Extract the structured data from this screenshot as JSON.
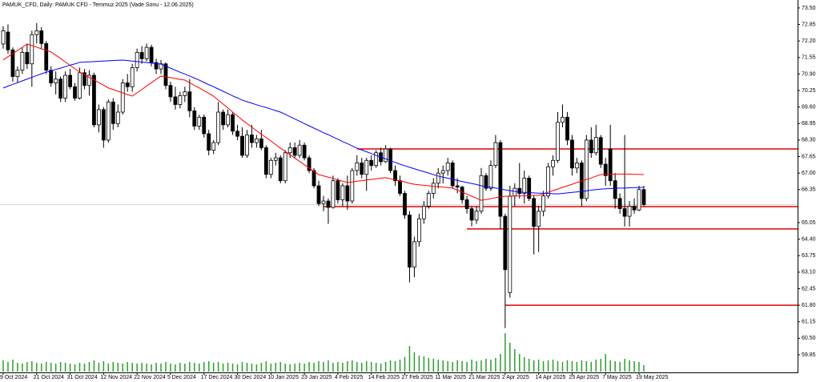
{
  "chart_data": {
    "type": "candlestick",
    "title": "PAMUK_CFD, Daily:  PAMUK CFD - Temmuz 2025 (Vade Sonu - 12.06.2025)",
    "categories": [
      "9 Oct 2024",
      null,
      null,
      null,
      null,
      null,
      null,
      "21 Oct 2024",
      null,
      null,
      null,
      null,
      null,
      null,
      "31 Oct 2024",
      null,
      null,
      null,
      null,
      null,
      null,
      "12 Nov 2024",
      null,
      null,
      null,
      null,
      null,
      null,
      "22 Nov 2024",
      null,
      null,
      null,
      null,
      null,
      null,
      "5 Dec 2024",
      null,
      null,
      null,
      null,
      null,
      null,
      "17 Dec 2024",
      null,
      null,
      null,
      null,
      null,
      null,
      "30 Dec 2024",
      null,
      null,
      null,
      null,
      null,
      null,
      "10 Jan 2025",
      null,
      null,
      null,
      null,
      null,
      null,
      "23 Jan 2025",
      null,
      null,
      null,
      null,
      null,
      null,
      "4 Feb 2025",
      null,
      null,
      null,
      null,
      null,
      null,
      "14 Feb 2025",
      null,
      null,
      null,
      null,
      null,
      null,
      "27 Feb 2025",
      null,
      null,
      null,
      null,
      null,
      null,
      "11 Mar 2025",
      null,
      null,
      null,
      null,
      null,
      null,
      "21 Mar 2025",
      null,
      null,
      null,
      null,
      null,
      null,
      "2 Apr 2025",
      null,
      null,
      null,
      null,
      null,
      null,
      "14 Apr 2025",
      null,
      null,
      null,
      null,
      null,
      null,
      "25 Apr 2025",
      null,
      null,
      null,
      null,
      null,
      null,
      "7 May 2025",
      null,
      null,
      null,
      null,
      null,
      null,
      "19 May 2025",
      null
    ],
    "ohlc": [
      [
        72.08,
        72.78,
        71.9,
        72.6
      ],
      [
        72.55,
        72.85,
        71.7,
        71.85
      ],
      [
        71.85,
        71.95,
        70.6,
        70.8
      ],
      [
        70.8,
        71.2,
        70.55,
        71.05
      ],
      [
        71.05,
        71.95,
        70.9,
        71.75
      ],
      [
        71.75,
        72.1,
        71.1,
        71.3
      ],
      [
        71.3,
        72.6,
        70.4,
        72.45
      ],
      [
        72.45,
        72.9,
        72.1,
        72.6
      ],
      [
        72.6,
        72.75,
        71.9,
        72.1
      ],
      [
        72.1,
        72.2,
        70.9,
        71.05
      ],
      [
        71.05,
        71.2,
        70.4,
        70.55
      ],
      [
        70.55,
        71.0,
        70.1,
        70.7
      ],
      [
        70.7,
        70.8,
        69.8,
        69.95
      ],
      [
        69.95,
        71.0,
        69.8,
        70.85
      ],
      [
        70.85,
        71.1,
        70.3,
        70.4
      ],
      [
        70.4,
        70.55,
        69.85,
        69.95
      ],
      [
        69.95,
        71.15,
        69.9,
        70.95
      ],
      [
        70.95,
        71.1,
        70.3,
        70.45
      ],
      [
        70.45,
        71.05,
        70.05,
        70.85
      ],
      [
        70.85,
        70.95,
        68.8,
        68.9
      ],
      [
        68.9,
        69.7,
        68.6,
        69.5
      ],
      [
        69.5,
        69.6,
        68.0,
        68.3
      ],
      [
        68.3,
        69.9,
        68.2,
        69.8
      ],
      [
        69.8,
        69.95,
        68.7,
        68.95
      ],
      [
        68.95,
        69.7,
        68.8,
        69.4
      ],
      [
        69.4,
        70.7,
        69.3,
        70.55
      ],
      [
        70.55,
        70.9,
        70.2,
        70.4
      ],
      [
        70.4,
        71.3,
        70.2,
        71.15
      ],
      [
        71.15,
        71.9,
        71.0,
        71.75
      ],
      [
        71.75,
        72.0,
        71.3,
        71.5
      ],
      [
        71.5,
        72.1,
        71.4,
        71.95
      ],
      [
        71.95,
        72.05,
        71.2,
        71.35
      ],
      [
        71.35,
        71.5,
        70.9,
        71.1
      ],
      [
        71.1,
        71.45,
        70.9,
        71.3
      ],
      [
        71.3,
        71.35,
        70.3,
        70.45
      ],
      [
        70.45,
        70.6,
        69.8,
        70.0
      ],
      [
        70.0,
        70.4,
        69.5,
        69.7
      ],
      [
        69.7,
        70.2,
        69.55,
        70.05
      ],
      [
        70.05,
        70.4,
        69.8,
        70.2
      ],
      [
        70.2,
        70.7,
        69.2,
        69.45
      ],
      [
        69.45,
        69.6,
        68.7,
        68.85
      ],
      [
        68.85,
        69.3,
        68.7,
        69.2
      ],
      [
        69.2,
        69.3,
        68.4,
        68.55
      ],
      [
        68.55,
        68.7,
        67.7,
        67.9
      ],
      [
        67.9,
        68.3,
        67.75,
        68.2
      ],
      [
        68.2,
        69.8,
        68.1,
        69.4
      ],
      [
        69.4,
        69.5,
        68.7,
        68.9
      ],
      [
        68.9,
        69.5,
        68.8,
        69.3
      ],
      [
        69.3,
        69.4,
        68.5,
        68.65
      ],
      [
        68.65,
        68.9,
        68.3,
        68.45
      ],
      [
        68.45,
        68.8,
        67.6,
        67.7
      ],
      [
        67.7,
        68.7,
        67.6,
        68.5
      ],
      [
        68.5,
        68.9,
        68.0,
        68.2
      ],
      [
        68.2,
        68.5,
        68.0,
        68.35
      ],
      [
        68.35,
        68.7,
        67.9,
        68.0
      ],
      [
        68.0,
        68.1,
        66.8,
        66.95
      ],
      [
        66.95,
        67.6,
        66.8,
        67.5
      ],
      [
        67.5,
        67.8,
        67.3,
        67.6
      ],
      [
        67.6,
        67.7,
        66.6,
        66.7
      ],
      [
        66.7,
        67.9,
        66.6,
        67.8
      ],
      [
        67.8,
        68.2,
        67.6,
        68.0
      ],
      [
        68.0,
        68.2,
        67.6,
        67.7
      ],
      [
        67.7,
        68.3,
        67.6,
        68.1
      ],
      [
        68.1,
        68.2,
        67.5,
        67.6
      ],
      [
        67.6,
        67.7,
        67.0,
        67.1
      ],
      [
        67.1,
        67.2,
        66.4,
        66.5
      ],
      [
        66.5,
        66.7,
        65.7,
        65.8
      ],
      [
        65.8,
        66.1,
        65.5,
        65.9
      ],
      [
        65.9,
        66.0,
        65.0,
        65.65
      ],
      [
        65.65,
        66.9,
        65.6,
        66.7
      ],
      [
        66.7,
        66.8,
        65.8,
        65.95
      ],
      [
        65.95,
        66.6,
        65.7,
        66.5
      ],
      [
        66.5,
        66.9,
        65.55,
        65.9
      ],
      [
        65.9,
        67.2,
        65.8,
        67.1
      ],
      [
        67.1,
        67.7,
        66.9,
        67.4
      ],
      [
        67.4,
        67.6,
        66.8,
        66.95
      ],
      [
        66.95,
        67.6,
        66.3,
        67.5
      ],
      [
        67.5,
        67.7,
        67.1,
        67.3
      ],
      [
        67.3,
        67.9,
        67.2,
        67.8
      ],
      [
        67.8,
        68.0,
        67.3,
        67.45
      ],
      [
        67.45,
        68.1,
        67.4,
        67.95
      ],
      [
        67.95,
        68.0,
        67.0,
        67.1
      ],
      [
        67.1,
        67.3,
        66.5,
        66.7
      ],
      [
        66.7,
        66.9,
        66.1,
        66.2
      ],
      [
        66.2,
        66.3,
        65.2,
        65.35
      ],
      [
        65.35,
        65.5,
        62.7,
        63.3
      ],
      [
        63.3,
        64.5,
        62.9,
        64.3
      ],
      [
        64.3,
        65.4,
        64.1,
        65.2
      ],
      [
        65.2,
        65.9,
        65.0,
        65.7
      ],
      [
        65.7,
        66.3,
        65.6,
        66.2
      ],
      [
        66.2,
        66.8,
        66.0,
        66.6
      ],
      [
        66.6,
        67.2,
        66.4,
        67.0
      ],
      [
        67.0,
        67.3,
        66.6,
        67.1
      ],
      [
        67.1,
        67.6,
        66.9,
        67.4
      ],
      [
        67.4,
        67.5,
        66.4,
        66.5
      ],
      [
        66.5,
        66.8,
        66.2,
        66.45
      ],
      [
        66.45,
        66.5,
        65.8,
        65.95
      ],
      [
        65.95,
        66.1,
        65.4,
        65.6
      ],
      [
        65.6,
        65.7,
        64.9,
        65.15
      ],
      [
        65.15,
        65.7,
        65.0,
        65.5
      ],
      [
        65.5,
        67.2,
        65.4,
        66.9
      ],
      [
        66.9,
        67.0,
        66.3,
        66.4
      ],
      [
        66.4,
        67.5,
        66.3,
        67.3
      ],
      [
        67.3,
        68.5,
        67.2,
        68.2
      ],
      [
        68.2,
        68.3,
        64.8,
        65.3
      ],
      [
        65.3,
        65.4,
        60.9,
        63.2
      ],
      [
        62.3,
        66.5,
        62.1,
        66.1
      ],
      [
        66.1,
        66.6,
        65.7,
        66.4
      ],
      [
        66.4,
        67.4,
        66.0,
        66.2
      ],
      [
        66.2,
        67.1,
        65.8,
        66.8
      ],
      [
        66.8,
        66.9,
        65.9,
        66.0
      ],
      [
        66.0,
        66.1,
        63.8,
        64.9
      ],
      [
        64.9,
        65.7,
        63.9,
        65.5
      ],
      [
        65.5,
        66.3,
        65.3,
        66.1
      ],
      [
        66.1,
        67.4,
        66.0,
        67.25
      ],
      [
        67.25,
        67.7,
        66.9,
        67.5
      ],
      [
        67.5,
        69.4,
        67.4,
        69.0
      ],
      [
        69.0,
        69.7,
        68.8,
        69.2
      ],
      [
        69.2,
        69.4,
        68.1,
        68.3
      ],
      [
        68.3,
        68.5,
        66.9,
        67.2
      ],
      [
        67.2,
        67.6,
        67.0,
        67.4
      ],
      [
        67.4,
        67.5,
        65.7,
        66.0
      ],
      [
        66.0,
        68.5,
        65.9,
        68.3
      ],
      [
        68.3,
        68.8,
        67.6,
        67.8
      ],
      [
        67.8,
        68.9,
        67.7,
        68.4
      ],
      [
        68.4,
        68.5,
        67.2,
        67.35
      ],
      [
        67.35,
        67.6,
        66.5,
        66.9
      ],
      [
        67.95,
        68.9,
        66.5,
        66.7
      ],
      [
        66.7,
        67.0,
        65.6,
        66.0
      ],
      [
        66.0,
        66.2,
        65.4,
        65.6
      ],
      [
        65.6,
        68.5,
        64.9,
        65.3
      ],
      [
        65.3,
        65.9,
        64.9,
        65.7
      ],
      [
        65.7,
        66.0,
        65.4,
        65.55
      ],
      [
        65.55,
        66.5,
        65.5,
        66.35
      ],
      [
        66.35,
        66.5,
        65.7,
        65.76
      ]
    ],
    "up_color": "#ffffff",
    "down_color": "#000000",
    "series": [
      {
        "color": "#ff0000",
        "values": [
          71.45,
          71.58,
          71.7,
          71.83,
          71.95,
          72.08,
          72.02,
          71.96,
          71.89,
          71.83,
          71.77,
          71.64,
          71.51,
          71.37,
          71.24,
          71.11,
          70.98,
          70.88,
          70.77,
          70.67,
          70.56,
          70.46,
          70.35,
          70.29,
          70.22,
          70.16,
          70.09,
          70.03,
          70.16,
          70.29,
          70.43,
          70.56,
          70.69,
          70.82,
          70.79,
          70.76,
          70.72,
          70.69,
          70.66,
          70.56,
          70.45,
          70.35,
          70.24,
          70.14,
          70.03,
          69.87,
          69.72,
          69.56,
          69.4,
          69.25,
          69.09,
          68.95,
          68.81,
          68.67,
          68.53,
          68.4,
          68.26,
          68.12,
          67.98,
          67.85,
          67.72,
          67.59,
          67.46,
          67.33,
          67.2,
          67.07,
          66.94,
          66.89,
          66.84,
          66.79,
          66.73,
          66.68,
          66.63,
          66.65,
          66.68,
          66.7,
          66.73,
          66.75,
          66.77,
          66.8,
          66.82,
          66.78,
          66.73,
          66.69,
          66.65,
          66.6,
          66.56,
          66.54,
          66.52,
          66.5,
          66.48,
          66.47,
          66.45,
          66.43,
          66.41,
          66.33,
          66.25,
          66.17,
          66.09,
          66.01,
          65.93,
          65.96,
          65.99,
          66.03,
          66.06,
          66.09,
          66.09,
          66.1,
          66.1,
          66.11,
          66.11,
          66.12,
          66.12,
          66.18,
          66.25,
          66.31,
          66.37,
          66.44,
          66.5,
          66.56,
          66.63,
          66.69,
          66.75,
          66.81,
          66.88,
          66.94,
          66.95,
          66.95,
          66.96,
          66.96,
          66.96,
          66.96,
          66.95,
          66.95,
          66.94
        ]
      },
      {
        "color": "#0000ff",
        "values": [
          70.35,
          70.42,
          70.49,
          70.56,
          70.63,
          70.7,
          70.77,
          70.84,
          70.91,
          70.97,
          71.02,
          71.08,
          71.13,
          71.19,
          71.25,
          71.3,
          71.36,
          71.37,
          71.38,
          71.39,
          71.4,
          71.41,
          71.42,
          71.43,
          71.44,
          71.45,
          71.43,
          71.41,
          71.39,
          71.37,
          71.35,
          71.33,
          71.31,
          71.29,
          71.21,
          71.13,
          71.05,
          70.97,
          70.9,
          70.82,
          70.74,
          70.66,
          70.57,
          70.48,
          70.4,
          70.31,
          70.22,
          70.13,
          70.04,
          69.96,
          69.87,
          69.81,
          69.75,
          69.69,
          69.63,
          69.58,
          69.52,
          69.46,
          69.4,
          69.31,
          69.22,
          69.13,
          69.04,
          68.95,
          68.86,
          68.77,
          68.68,
          68.59,
          68.51,
          68.42,
          68.33,
          68.24,
          68.16,
          68.07,
          67.98,
          67.91,
          67.84,
          67.77,
          67.7,
          67.63,
          67.56,
          67.49,
          67.42,
          67.35,
          67.29,
          67.23,
          67.17,
          67.11,
          67.06,
          67.0,
          66.94,
          66.88,
          66.84,
          66.8,
          66.76,
          66.71,
          66.67,
          66.63,
          66.59,
          66.55,
          66.5,
          66.47,
          66.44,
          66.41,
          66.38,
          66.34,
          66.31,
          66.28,
          66.25,
          66.24,
          66.23,
          66.22,
          66.21,
          66.21,
          66.2,
          66.19,
          66.18,
          66.2,
          66.22,
          66.24,
          66.26,
          66.28,
          66.3,
          66.33,
          66.35,
          66.37,
          66.38,
          66.39,
          66.4,
          66.41,
          66.41,
          66.42,
          66.43,
          66.43,
          66.44
        ]
      }
    ],
    "volume": {
      "color": "#2e9d2e",
      "values": [
        14,
        12,
        15,
        11,
        10,
        12,
        13,
        11,
        10,
        12,
        11,
        10,
        12,
        11,
        10,
        9,
        11,
        10,
        12,
        14,
        11,
        13,
        10,
        12,
        11,
        10,
        12,
        11,
        10,
        11,
        10,
        9,
        11,
        10,
        12,
        10,
        9,
        11,
        10,
        12,
        11,
        10,
        12,
        13,
        11,
        12,
        10,
        11,
        10,
        9,
        12,
        11,
        10,
        9,
        11,
        13,
        10,
        11,
        12,
        10,
        9,
        10,
        11,
        10,
        12,
        11,
        13,
        12,
        14,
        11,
        12,
        11,
        13,
        14,
        12,
        11,
        13,
        12,
        11,
        10,
        12,
        14,
        13,
        15,
        18,
        32,
        24,
        20,
        19,
        17,
        16,
        15,
        14,
        13,
        12,
        14,
        13,
        12,
        15,
        13,
        14,
        16,
        15,
        17,
        22,
        48,
        36,
        28,
        22,
        18,
        16,
        14,
        15,
        13,
        14,
        15,
        13,
        12,
        14,
        13,
        12,
        14,
        13,
        12,
        15,
        16,
        22,
        14,
        13,
        12,
        16,
        14,
        13,
        12,
        8
      ]
    },
    "levels": {
      "color": "#e00000",
      "values": [
        67.95,
        65.68,
        64.8,
        61.8
      ]
    },
    "ylim": [
      59.25,
      73.75
    ],
    "yticks": [
      {
        "value": 73.5,
        "label": "73.50"
      },
      72.85,
      {
        "value": 72.2,
        "label": "72.20"
      },
      71.55,
      {
        "value": 70.9,
        "label": "70.90"
      },
      70.25,
      {
        "value": 69.6,
        "label": "69.60"
      },
      68.95,
      {
        "value": 68.3,
        "label": "68.30"
      },
      67.65,
      {
        "value": 67,
        "label": "67.00"
      },
      66.35,
      65.05,
      {
        "value": 64.4,
        "label": "64.40"
      },
      63.75,
      {
        "value": 63.1,
        "label": "63.10"
      },
      62.45,
      {
        "value": 61.8,
        "label": "61.80"
      },
      61.15,
      {
        "value": 60.5,
        "label": "60.50"
      },
      59.85
    ],
    "grid": false
  }
}
